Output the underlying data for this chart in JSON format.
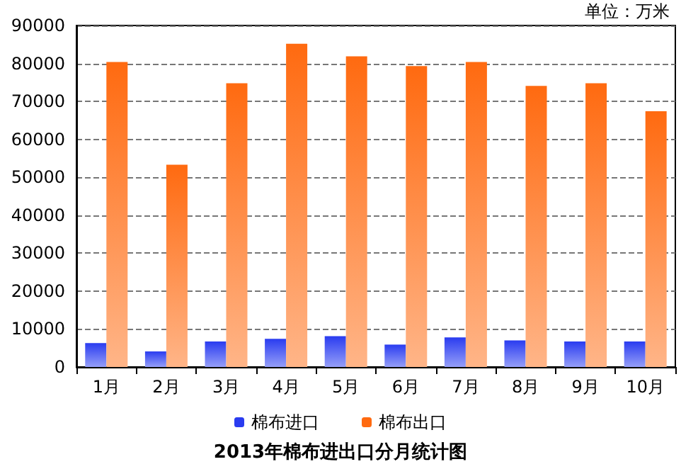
{
  "chart_data": {
    "type": "bar",
    "title": "2013年棉布进出口分月统计图",
    "annotations": [
      "单位：万米"
    ],
    "categories": [
      "1月",
      "2月",
      "3月",
      "4月",
      "5月",
      "6月",
      "7月",
      "8月",
      "9月",
      "10月"
    ],
    "series": [
      {
        "name": "棉布进口",
        "color": "#2a3cf0",
        "values": [
          6300,
          4100,
          6700,
          7400,
          8100,
          5900,
          7800,
          7000,
          6700,
          6700
        ]
      },
      {
        "name": "棉布出口",
        "color": "#ff6a10",
        "values": [
          80400,
          53300,
          74800,
          85200,
          81900,
          79300,
          80400,
          74100,
          74800,
          67400
        ]
      }
    ],
    "ylim": [
      0,
      90000
    ],
    "yticks": [
      0,
      10000,
      20000,
      30000,
      40000,
      50000,
      60000,
      70000,
      80000,
      90000
    ],
    "grid": "y",
    "legend": "bottom"
  }
}
